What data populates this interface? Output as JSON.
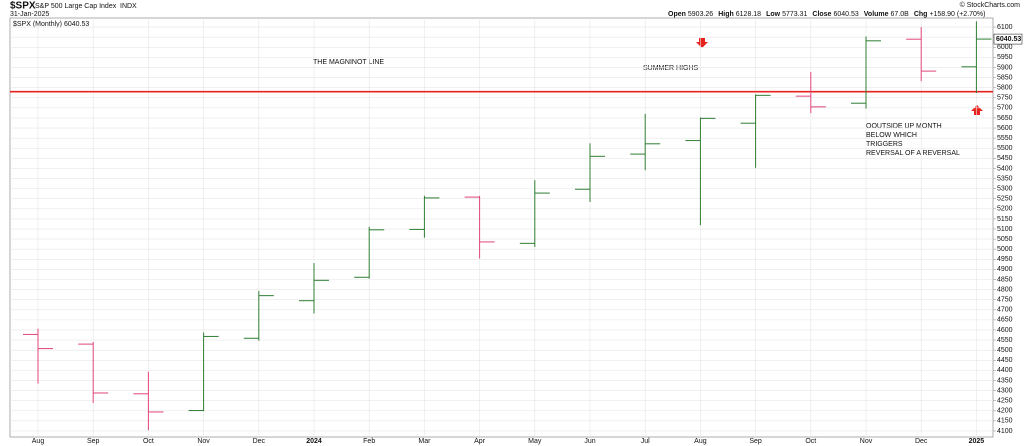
{
  "chart_data": {
    "type": "ohlc",
    "title": "$SPX",
    "subtitle": "S&P 500 Large Cap Index",
    "exchange": "INDX",
    "date": "31-Jan-2025",
    "credit": "© StockCharts.com",
    "quote": [
      {
        "label": "Open",
        "value": "5903.26"
      },
      {
        "label": "High",
        "value": "6128.18"
      },
      {
        "label": "Low",
        "value": "5773.31"
      },
      {
        "label": "Close",
        "value": "6040.53"
      },
      {
        "label": "Volume",
        "value": "67.0B"
      },
      {
        "label": "Chg",
        "value": "+158.90 (+2.70%)"
      }
    ],
    "legend_label": "$SPX (Monthly) 6040.53",
    "last_value_label": "6040.53",
    "categories": [
      "Aug",
      "Sep",
      "Oct",
      "Nov",
      "Dec",
      "2024",
      "Feb",
      "Mar",
      "Apr",
      "May",
      "Jun",
      "Jul",
      "Aug",
      "Sep",
      "Oct",
      "Nov",
      "Dec",
      "2025"
    ],
    "series": {
      "open": [
        4578,
        4530,
        4284,
        4201,
        4559,
        4745,
        4861,
        5098,
        5258,
        5029,
        5297,
        5471,
        5538,
        5624,
        5758,
        5723,
        6040,
        5903.26
      ],
      "high": [
        4607,
        4541,
        4394,
        4588,
        4793,
        4931,
        5111,
        5265,
        5264,
        5342,
        5524,
        5670,
        5652,
        5767,
        5878,
        6054,
        6100,
        6128.18
      ],
      "low": [
        4335,
        4239,
        4104,
        4198,
        4547,
        4682,
        4854,
        5057,
        4954,
        5011,
        5234,
        5391,
        5119,
        5403,
        5674,
        5697,
        5832,
        5773.31
      ],
      "close": [
        4508,
        4288,
        4194,
        4568,
        4770,
        4846,
        5096,
        5254,
        5036,
        5278,
        5460,
        5522,
        5648,
        5762,
        5705,
        6032,
        5882,
        6040.53
      ]
    },
    "up_color": "#2e7d32",
    "down_color": "#e0457b",
    "ylim": [
      4070,
      6145
    ],
    "yticks": [
      4100,
      4150,
      4200,
      4250,
      4300,
      4350,
      4400,
      4450,
      4500,
      4550,
      4600,
      4650,
      4700,
      4750,
      4800,
      4850,
      4900,
      4950,
      5000,
      5050,
      5100,
      5150,
      5200,
      5250,
      5300,
      5350,
      5400,
      5450,
      5500,
      5550,
      5600,
      5650,
      5700,
      5750,
      5800,
      5850,
      5900,
      5950,
      6000,
      6050,
      6100
    ],
    "grid": true,
    "hline": {
      "value": 5780,
      "color": "#e8231e"
    },
    "annotations": [
      {
        "text": "THE MAGNINOT LINE",
        "color": "#111111"
      },
      {
        "text": "SUMMER HIGHS",
        "color": "#e8231e"
      },
      {
        "text": "OOUTSIDE UP MONTH",
        "color": "#e8231e"
      },
      {
        "text": "BELOW WHICH",
        "color": "#e8231e"
      },
      {
        "text": "TRIGGERS",
        "color": "#e8231e"
      },
      {
        "text": "REVERSAL OF A REVERSAL",
        "color": "#e8231e"
      }
    ]
  }
}
